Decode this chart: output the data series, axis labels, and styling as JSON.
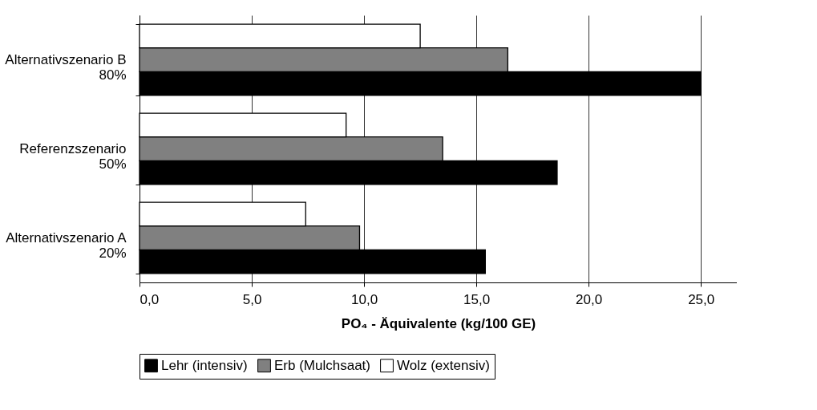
{
  "chart_data": {
    "type": "bar",
    "orientation": "horizontal",
    "categories": [
      "Alternativszenario B\n80%",
      "Referenzszenario\n50%",
      "Alternativszenario A\n20%"
    ],
    "series": [
      {
        "name": "Lehr (intensiv)",
        "color": "#000000",
        "values": [
          25.0,
          18.6,
          15.4
        ]
      },
      {
        "name": "Erb (Mulchsaat)",
        "color": "#808080",
        "values": [
          16.4,
          13.5,
          9.8
        ]
      },
      {
        "name": "Wolz (extensiv)",
        "color": "#ffffff",
        "values": [
          12.5,
          9.2,
          7.4
        ]
      }
    ],
    "xlabel": "PO₄ - Äquivalente (kg/100 GE)",
    "xlim": [
      0,
      26.6
    ],
    "xticks": [
      {
        "value": 0,
        "label": "0,0"
      },
      {
        "value": 5,
        "label": "5,0"
      },
      {
        "value": 10,
        "label": "10,0"
      },
      {
        "value": 15,
        "label": "15,0"
      },
      {
        "value": 20,
        "label": "20,0"
      },
      {
        "value": 25,
        "label": "25,0"
      }
    ],
    "grid": "x",
    "legend": "bottom"
  }
}
